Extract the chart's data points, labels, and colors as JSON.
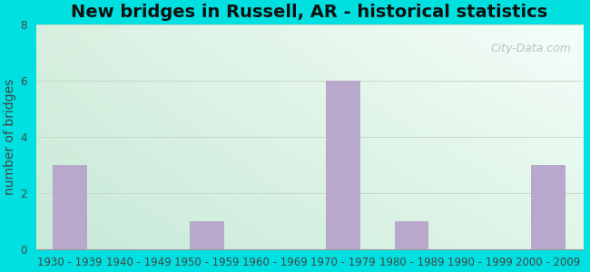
{
  "title": "New bridges in Russell, AR - historical statistics",
  "categories": [
    "1930 - 1939",
    "1940 - 1949",
    "1950 - 1959",
    "1960 - 1969",
    "1970 - 1979",
    "1980 - 1989",
    "1990 - 1999",
    "2000 - 2009"
  ],
  "values": [
    3,
    0,
    1,
    0,
    6,
    1,
    0,
    3
  ],
  "bar_color": "#b8a8cc",
  "ylabel": "number of bridges",
  "ylim": [
    0,
    8
  ],
  "yticks": [
    0,
    2,
    4,
    6,
    8
  ],
  "background_outer": "#00e0e0",
  "plot_bg_topleft": "#d8efe0",
  "plot_bg_topright": "#f8fef8",
  "plot_bg_bottomright": "#e0f5e8",
  "title_fontsize": 14,
  "axis_label_fontsize": 10,
  "tick_fontsize": 8.5,
  "watermark_text": "City-Data.com",
  "watermark_color": "#b0bec5",
  "grid_color": "#c8d8c8",
  "title_color": "#111111",
  "tick_label_color": "#444444",
  "axis_label_color": "#444444"
}
